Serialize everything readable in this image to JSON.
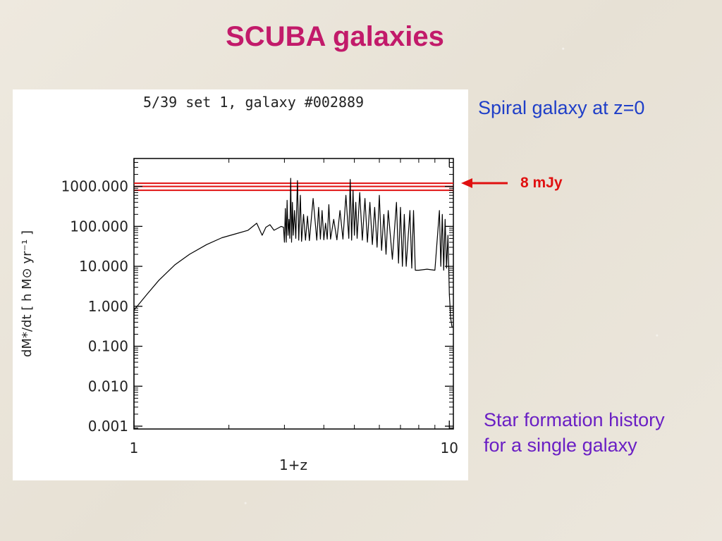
{
  "slide": {
    "title": "SCUBA galaxies",
    "caption_top": "Spiral galaxy at z=0",
    "arrow_label": "8 mJy",
    "caption_bottom": [
      "Star formation history",
      "for a single galaxy"
    ]
  },
  "colors": {
    "title": "#c21a6a",
    "caption_top": "#1f3fc8",
    "caption_bottom": "#6a1fc4",
    "threshold": "#e01010",
    "trace": "#000000"
  },
  "chart_data": {
    "type": "line",
    "title": "5/39 set 1,  galaxy #002889",
    "xlabel": "1+z",
    "ylabel": "dM*/dt  [ h M⊙ yr⁻¹ ]",
    "x_scale": "log",
    "y_scale": "log",
    "xlim": [
      1,
      10.3
    ],
    "ylim": [
      0.00085,
      5000
    ],
    "x_ticks": [
      {
        "value": 1,
        "label": "1"
      },
      {
        "value": 10,
        "label": "10"
      }
    ],
    "y_ticks": [
      {
        "value": 1000,
        "label": "1000.000"
      },
      {
        "value": 100,
        "label": "100.000"
      },
      {
        "value": 10,
        "label": "10.000"
      },
      {
        "value": 1,
        "label": "1.000"
      },
      {
        "value": 0.1,
        "label": "0.100"
      },
      {
        "value": 0.01,
        "label": "0.010"
      },
      {
        "value": 0.001,
        "label": "0.001"
      }
    ],
    "threshold_lines": [
      800,
      1000,
      1200
    ],
    "threshold_label": "8 mJy",
    "series": [
      {
        "x": [
          1.0,
          1.0,
          1.1,
          1.2,
          1.35,
          1.5,
          1.7,
          1.9,
          2.1,
          2.3,
          2.45,
          2.55,
          2.62,
          2.7,
          2.78,
          2.86,
          2.93,
          2.98,
          3.0,
          3.02,
          3.04,
          3.06,
          3.08,
          3.1,
          3.12,
          3.14,
          3.16,
          3.18,
          3.2,
          3.23,
          3.26,
          3.3,
          3.33,
          3.37,
          3.4,
          3.45,
          3.5,
          3.55,
          3.6,
          3.7,
          3.8,
          3.85,
          3.9,
          3.95,
          4.0,
          4.05,
          4.1,
          4.15,
          4.2,
          4.3,
          4.4,
          4.5,
          4.6,
          4.7,
          4.8,
          4.85,
          4.9,
          4.95,
          5.0,
          5.05,
          5.1,
          5.2,
          5.3,
          5.4,
          5.5,
          5.6,
          5.7,
          5.8,
          5.9,
          6.0,
          6.1,
          6.2,
          6.3,
          6.4,
          6.6,
          6.8,
          6.9,
          7.0,
          7.1,
          7.2,
          7.3,
          7.5,
          7.6,
          7.7,
          7.8,
          8.0,
          8.5,
          9.0,
          9.3,
          9.4,
          9.5,
          9.6,
          9.7,
          9.8,
          9.9,
          10.0,
          10.1,
          10.2,
          10.3
        ],
        "y": [
          0.001,
          0.8,
          2.0,
          4.5,
          11,
          20,
          35,
          52,
          65,
          80,
          120,
          60,
          95,
          110,
          80,
          90,
          100,
          95,
          40,
          280,
          40,
          450,
          60,
          150,
          50,
          1600,
          40,
          400,
          60,
          250,
          50,
          1400,
          45,
          600,
          42,
          200,
          45,
          180,
          44,
          500,
          45,
          300,
          48,
          250,
          46,
          120,
          48,
          350,
          48,
          150,
          46,
          250,
          48,
          600,
          50,
          1500,
          45,
          800,
          60,
          400,
          50,
          700,
          45,
          500,
          40,
          400,
          35,
          300,
          30,
          600,
          25,
          200,
          20,
          250,
          15,
          400,
          12,
          300,
          10,
          200,
          10,
          250,
          9,
          250,
          8,
          8,
          8.5,
          8,
          250,
          10,
          200,
          8,
          150,
          9,
          60,
          2,
          0.5,
          0.3,
          0.3
        ]
      }
    ]
  }
}
